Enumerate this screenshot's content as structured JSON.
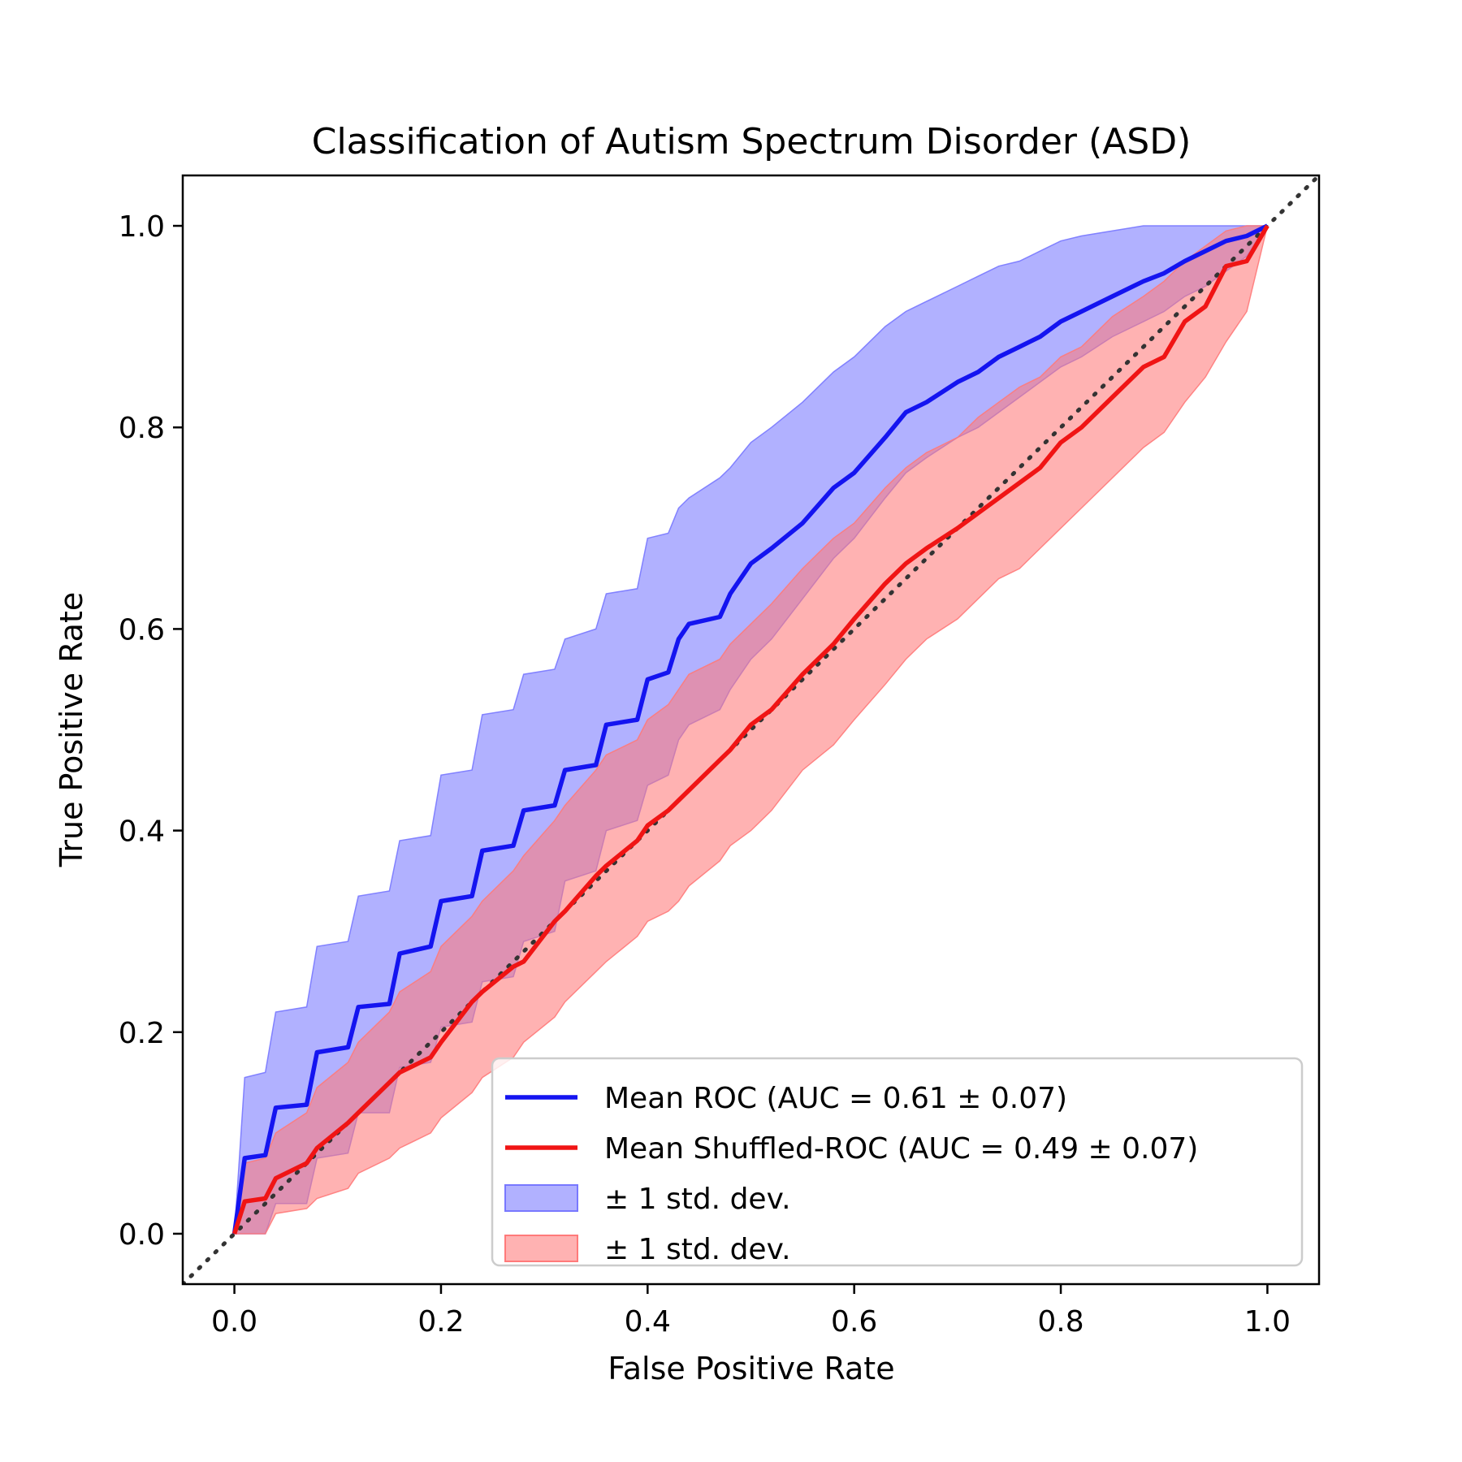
{
  "chart_data": {
    "type": "line",
    "title": "Classification of Autism Spectrum Disorder (ASD)",
    "xlabel": "False Positive Rate",
    "ylabel": "True Positive Rate",
    "xlim": [
      -0.05,
      1.05
    ],
    "ylim": [
      -0.05,
      1.05
    ],
    "xticks": [
      "0.0",
      "0.2",
      "0.4",
      "0.6",
      "0.8",
      "1.0"
    ],
    "yticks": [
      "0.0",
      "0.2",
      "0.4",
      "0.6",
      "0.8",
      "1.0"
    ],
    "grid": false,
    "legend_position": "lower-right",
    "colors": {
      "mean_roc": "#1414f0",
      "shuffled_roc": "#f01414",
      "band_blue": "#7878ff",
      "band_red": "#ff7a7a",
      "chance": "#333333"
    },
    "x": [
      0.0,
      0.01,
      0.03,
      0.04,
      0.07,
      0.08,
      0.11,
      0.12,
      0.15,
      0.16,
      0.19,
      0.2,
      0.23,
      0.24,
      0.27,
      0.28,
      0.31,
      0.32,
      0.35,
      0.36,
      0.39,
      0.4,
      0.42,
      0.43,
      0.44,
      0.47,
      0.48,
      0.5,
      0.52,
      0.55,
      0.58,
      0.6,
      0.63,
      0.65,
      0.67,
      0.7,
      0.72,
      0.74,
      0.76,
      0.78,
      0.8,
      0.82,
      0.85,
      0.88,
      0.9,
      0.92,
      0.94,
      0.96,
      0.98,
      1.0
    ],
    "series": [
      {
        "name": "Mean ROC (AUC = 0.61 ± 0.07)",
        "values": [
          0.0,
          0.075,
          0.078,
          0.125,
          0.128,
          0.18,
          0.185,
          0.225,
          0.228,
          0.278,
          0.285,
          0.33,
          0.335,
          0.38,
          0.385,
          0.42,
          0.425,
          0.46,
          0.465,
          0.505,
          0.51,
          0.55,
          0.557,
          0.59,
          0.605,
          0.612,
          0.635,
          0.665,
          0.68,
          0.705,
          0.74,
          0.755,
          0.79,
          0.815,
          0.825,
          0.845,
          0.855,
          0.87,
          0.88,
          0.89,
          0.905,
          0.915,
          0.93,
          0.945,
          0.953,
          0.965,
          0.975,
          0.985,
          0.99,
          1.0
        ],
        "lower": [
          0.0,
          0.0,
          0.0,
          0.03,
          0.03,
          0.075,
          0.08,
          0.12,
          0.12,
          0.165,
          0.17,
          0.205,
          0.21,
          0.25,
          0.255,
          0.29,
          0.3,
          0.35,
          0.36,
          0.4,
          0.41,
          0.445,
          0.455,
          0.49,
          0.505,
          0.52,
          0.54,
          0.57,
          0.59,
          0.63,
          0.67,
          0.69,
          0.73,
          0.755,
          0.77,
          0.79,
          0.8,
          0.815,
          0.83,
          0.845,
          0.86,
          0.87,
          0.89,
          0.905,
          0.915,
          0.93,
          0.94,
          0.955,
          0.97,
          1.0
        ],
        "upper": [
          0.0,
          0.155,
          0.16,
          0.22,
          0.225,
          0.285,
          0.29,
          0.335,
          0.34,
          0.39,
          0.395,
          0.455,
          0.46,
          0.515,
          0.52,
          0.555,
          0.56,
          0.59,
          0.6,
          0.635,
          0.64,
          0.69,
          0.695,
          0.72,
          0.73,
          0.75,
          0.76,
          0.785,
          0.8,
          0.825,
          0.855,
          0.87,
          0.9,
          0.915,
          0.925,
          0.94,
          0.95,
          0.96,
          0.965,
          0.975,
          0.985,
          0.99,
          0.995,
          1.0,
          1.0,
          1.0,
          1.0,
          1.0,
          1.0,
          1.0
        ]
      },
      {
        "name": "Mean Shuffled-ROC (AUC = 0.49 ± 0.07)",
        "values": [
          0.0,
          0.032,
          0.035,
          0.055,
          0.07,
          0.085,
          0.11,
          0.12,
          0.15,
          0.16,
          0.175,
          0.19,
          0.23,
          0.24,
          0.265,
          0.27,
          0.31,
          0.32,
          0.355,
          0.365,
          0.39,
          0.405,
          0.42,
          0.43,
          0.44,
          0.47,
          0.48,
          0.505,
          0.52,
          0.555,
          0.585,
          0.61,
          0.645,
          0.665,
          0.68,
          0.7,
          0.715,
          0.73,
          0.745,
          0.76,
          0.785,
          0.8,
          0.83,
          0.86,
          0.87,
          0.905,
          0.92,
          0.96,
          0.965,
          1.0
        ],
        "lower": [
          0.0,
          0.0,
          0.0,
          0.02,
          0.025,
          0.035,
          0.045,
          0.06,
          0.075,
          0.085,
          0.1,
          0.115,
          0.14,
          0.155,
          0.175,
          0.19,
          0.215,
          0.23,
          0.26,
          0.27,
          0.295,
          0.31,
          0.32,
          0.33,
          0.345,
          0.37,
          0.385,
          0.4,
          0.42,
          0.46,
          0.485,
          0.51,
          0.545,
          0.57,
          0.59,
          0.61,
          0.63,
          0.65,
          0.66,
          0.68,
          0.7,
          0.72,
          0.75,
          0.78,
          0.795,
          0.825,
          0.85,
          0.885,
          0.915,
          1.0
        ],
        "upper": [
          0.0,
          0.07,
          0.075,
          0.1,
          0.12,
          0.145,
          0.17,
          0.19,
          0.22,
          0.24,
          0.26,
          0.285,
          0.315,
          0.33,
          0.36,
          0.375,
          0.41,
          0.425,
          0.46,
          0.475,
          0.49,
          0.51,
          0.525,
          0.54,
          0.555,
          0.57,
          0.585,
          0.605,
          0.625,
          0.66,
          0.69,
          0.705,
          0.74,
          0.76,
          0.775,
          0.79,
          0.81,
          0.825,
          0.84,
          0.85,
          0.87,
          0.88,
          0.91,
          0.93,
          0.945,
          0.965,
          0.98,
          0.995,
          1.0,
          1.0
        ]
      }
    ],
    "legend": [
      {
        "label": "Mean ROC (AUC = 0.61 ± 0.07)",
        "kind": "line",
        "color": "#1414f0"
      },
      {
        "label": "Mean Shuffled-ROC (AUC = 0.49 ± 0.07)",
        "kind": "line",
        "color": "#f01414"
      },
      {
        "label": "± 1 std. dev.",
        "kind": "patch",
        "color": "#7878ff"
      },
      {
        "label": "± 1 std. dev.",
        "kind": "patch",
        "color": "#ff7a7a"
      }
    ]
  }
}
